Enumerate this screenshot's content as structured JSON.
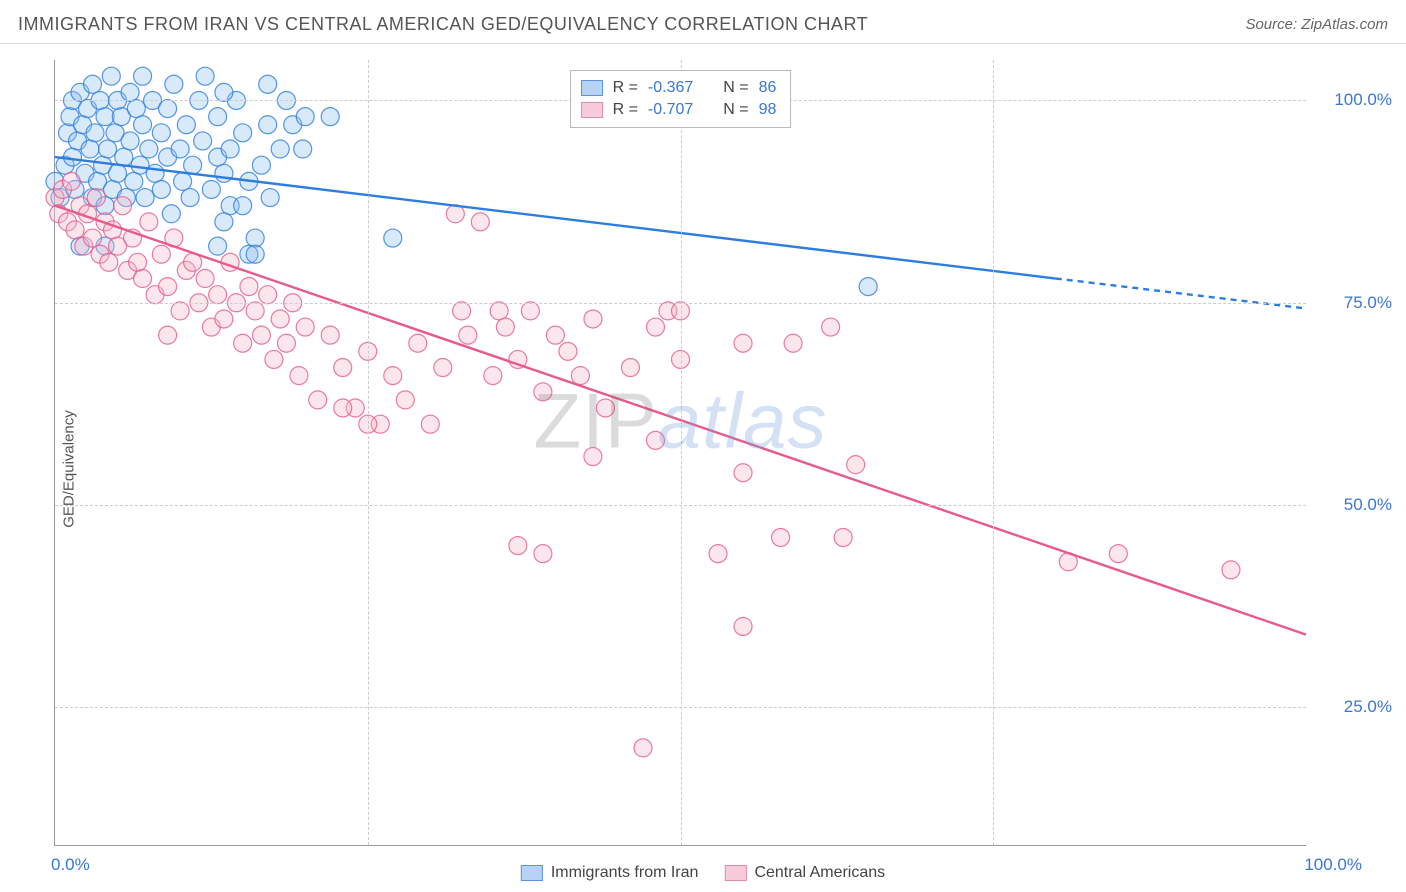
{
  "header": {
    "title": "IMMIGRANTS FROM IRAN VS CENTRAL AMERICAN GED/EQUIVALENCY CORRELATION CHART",
    "source": "Source: ZipAtlas.com"
  },
  "watermark": {
    "part1": "ZIP",
    "part2": "atlas"
  },
  "chart": {
    "type": "scatter",
    "ylabel": "GED/Equivalency",
    "background_color": "#ffffff",
    "grid_color": "#cccccc",
    "axis_color": "#9a9a9a",
    "label_color": "#3a76d6",
    "label_fontsize": 17,
    "xlim": [
      0,
      100
    ],
    "ylim": [
      8,
      105
    ],
    "xtick_positions_pct": [
      0,
      25,
      50,
      75,
      100
    ],
    "xtick_visible_labels": {
      "0": "0.0%",
      "100": "100.0%"
    },
    "ytick_positions": [
      25,
      50,
      75,
      100
    ],
    "ytick_labels": [
      "25.0%",
      "50.0%",
      "75.0%",
      "100.0%"
    ],
    "marker_radius": 9,
    "marker_fill_opacity": 0.35,
    "marker_stroke_width": 1.2,
    "series": [
      {
        "id": "iran",
        "name": "Immigrants from Iran",
        "color_stroke": "#2d7de0",
        "color_fill": "#8fbff2",
        "legend_swatch_fill": "#b6d3f3",
        "legend_swatch_border": "#5a94da",
        "stats": {
          "R": "-0.367",
          "N": "86"
        },
        "trend": {
          "x1": 0,
          "y1": 93,
          "x2_solid": 80,
          "y2_solid": 78,
          "x2_dash": 100,
          "y2_dash": 74.3,
          "width": 2.4
        },
        "points": [
          [
            0,
            90
          ],
          [
            0.4,
            88
          ],
          [
            0.8,
            92
          ],
          [
            1,
            96
          ],
          [
            1.2,
            98
          ],
          [
            1.4,
            100
          ],
          [
            1.4,
            93
          ],
          [
            1.6,
            89
          ],
          [
            1.8,
            95
          ],
          [
            2,
            101
          ],
          [
            2.2,
            97
          ],
          [
            2.4,
            91
          ],
          [
            2.6,
            99
          ],
          [
            2.8,
            94
          ],
          [
            3,
            88
          ],
          [
            3,
            102
          ],
          [
            3.2,
            96
          ],
          [
            3.4,
            90
          ],
          [
            3.6,
            100
          ],
          [
            3.8,
            92
          ],
          [
            4,
            98
          ],
          [
            4,
            87
          ],
          [
            4.2,
            94
          ],
          [
            4.5,
            103
          ],
          [
            4.6,
            89
          ],
          [
            4.8,
            96
          ],
          [
            5,
            100
          ],
          [
            5,
            91
          ],
          [
            5.3,
            98
          ],
          [
            5.5,
            93
          ],
          [
            5.7,
            88
          ],
          [
            6,
            101
          ],
          [
            6,
            95
          ],
          [
            6.3,
            90
          ],
          [
            6.5,
            99
          ],
          [
            6.8,
            92
          ],
          [
            7,
            97
          ],
          [
            7,
            103
          ],
          [
            7.2,
            88
          ],
          [
            7.5,
            94
          ],
          [
            7.8,
            100
          ],
          [
            8,
            91
          ],
          [
            8.5,
            96
          ],
          [
            8.5,
            89
          ],
          [
            9,
            93
          ],
          [
            9,
            99
          ],
          [
            9.3,
            86
          ],
          [
            9.5,
            102
          ],
          [
            10,
            94
          ],
          [
            10.2,
            90
          ],
          [
            10.5,
            97
          ],
          [
            10.8,
            88
          ],
          [
            11,
            92
          ],
          [
            11.5,
            100
          ],
          [
            11.8,
            95
          ],
          [
            12,
            103
          ],
          [
            12.5,
            89
          ],
          [
            13,
            98
          ],
          [
            13,
            93
          ],
          [
            13.5,
            91
          ],
          [
            14,
            87
          ],
          [
            14,
            94
          ],
          [
            14.5,
            100
          ],
          [
            15,
            96
          ],
          [
            15,
            87
          ],
          [
            15.5,
            90
          ],
          [
            16,
            83
          ],
          [
            16.5,
            92
          ],
          [
            17,
            102
          ],
          [
            17,
            97
          ],
          [
            17.2,
            88
          ],
          [
            18,
            94
          ],
          [
            18.5,
            100
          ],
          [
            2,
            82
          ],
          [
            4,
            82
          ],
          [
            13,
            82
          ],
          [
            13.5,
            85
          ],
          [
            15.5,
            81
          ],
          [
            16,
            81
          ],
          [
            19,
            97
          ],
          [
            19.8,
            94
          ],
          [
            20,
            98
          ],
          [
            22,
            98
          ],
          [
            27,
            83
          ],
          [
            13.5,
            101
          ],
          [
            65,
            77
          ]
        ]
      },
      {
        "id": "central",
        "name": "Central Americans",
        "color_stroke": "#e85a8a",
        "color_fill": "#f4b6c9",
        "legend_swatch_fill": "#f8cbd8",
        "legend_swatch_border": "#e68aaa",
        "stats": {
          "R": "-0.707",
          "N": "98"
        },
        "trend": {
          "x1": 0,
          "y1": 87,
          "x2_solid": 100,
          "y2_solid": 34,
          "x2_dash": 100,
          "y2_dash": 34,
          "width": 2.4
        },
        "points": [
          [
            0,
            88
          ],
          [
            0.3,
            86
          ],
          [
            0.6,
            89
          ],
          [
            1,
            85
          ],
          [
            1.3,
            90
          ],
          [
            1.6,
            84
          ],
          [
            2,
            87
          ],
          [
            2.3,
            82
          ],
          [
            2.6,
            86
          ],
          [
            3,
            83
          ],
          [
            3.3,
            88
          ],
          [
            3.6,
            81
          ],
          [
            4,
            85
          ],
          [
            4.3,
            80
          ],
          [
            4.6,
            84
          ],
          [
            5,
            82
          ],
          [
            5.4,
            87
          ],
          [
            5.8,
            79
          ],
          [
            6.2,
            83
          ],
          [
            6.6,
            80
          ],
          [
            7,
            78
          ],
          [
            7.5,
            85
          ],
          [
            8,
            76
          ],
          [
            8.5,
            81
          ],
          [
            9,
            77
          ],
          [
            9.5,
            83
          ],
          [
            10,
            74
          ],
          [
            10.5,
            79
          ],
          [
            11,
            80
          ],
          [
            11.5,
            75
          ],
          [
            12,
            78
          ],
          [
            12.5,
            72
          ],
          [
            13,
            76
          ],
          [
            13.5,
            73
          ],
          [
            14,
            80
          ],
          [
            14.5,
            75
          ],
          [
            15,
            70
          ],
          [
            15.5,
            77
          ],
          [
            16,
            74
          ],
          [
            16.5,
            71
          ],
          [
            17,
            76
          ],
          [
            17.5,
            68
          ],
          [
            18,
            73
          ],
          [
            18.5,
            70
          ],
          [
            19,
            75
          ],
          [
            19.5,
            66
          ],
          [
            20,
            72
          ],
          [
            21,
            63
          ],
          [
            22,
            71
          ],
          [
            23,
            67
          ],
          [
            24,
            62
          ],
          [
            25,
            69
          ],
          [
            26,
            60
          ],
          [
            27,
            66
          ],
          [
            28,
            63
          ],
          [
            29,
            70
          ],
          [
            30,
            60
          ],
          [
            31,
            67
          ],
          [
            32,
            86
          ],
          [
            32.5,
            74
          ],
          [
            33,
            71
          ],
          [
            34,
            85
          ],
          [
            35,
            66
          ],
          [
            35.5,
            74
          ],
          [
            36,
            72
          ],
          [
            37,
            68
          ],
          [
            38,
            74
          ],
          [
            39,
            64
          ],
          [
            40,
            71
          ],
          [
            41,
            69
          ],
          [
            42,
            66
          ],
          [
            43,
            73
          ],
          [
            44,
            62
          ],
          [
            46,
            67
          ],
          [
            48,
            72
          ],
          [
            49,
            74
          ],
          [
            50,
            68
          ],
          [
            37,
            45
          ],
          [
            39,
            44
          ],
          [
            50,
            74
          ],
          [
            53,
            44
          ],
          [
            55,
            54
          ],
          [
            55,
            70
          ],
          [
            58,
            46
          ],
          [
            59,
            70
          ],
          [
            62,
            72
          ],
          [
            64,
            55
          ],
          [
            63,
            46
          ],
          [
            55,
            35
          ],
          [
            43,
            56
          ],
          [
            48,
            58
          ],
          [
            85,
            44
          ],
          [
            81,
            43
          ],
          [
            94,
            42
          ],
          [
            47,
            20
          ],
          [
            23,
            62
          ],
          [
            25,
            60
          ],
          [
            9,
            71
          ]
        ]
      }
    ]
  },
  "legend_top": {
    "r_label": "R =",
    "n_label": "N ="
  }
}
